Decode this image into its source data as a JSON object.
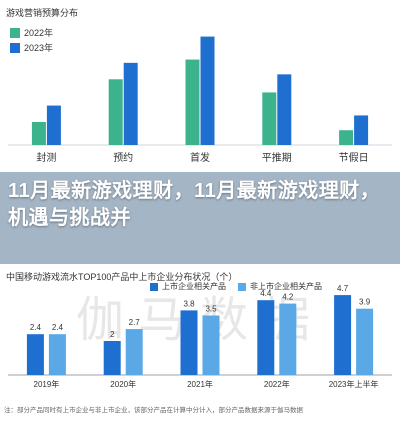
{
  "colors": {
    "series_2022": "#3cb38c",
    "series_2023": "#1e6fd0",
    "series_2022_icons": "#3cb38c",
    "bottom_listed": "#1e6fd0",
    "bottom_nonlisted": "#5aa9e6",
    "band": "#4f7190"
  },
  "headline": "11月最新游戏理财，11月最新游戏理财，机遇与挑战并",
  "watermark": "伽马数据",
  "footnote": "注：部分产品同时有上市企业与非上市企业，该部分产品在计算中分计入，部分产品数据来源于伽马数据",
  "chart_data": [
    {
      "type": "bar",
      "title": "游戏营销预算分布",
      "categories": [
        "封测",
        "预约",
        "首发",
        "平推期",
        "节假日"
      ],
      "series": [
        {
          "name": "2022年",
          "values": [
            1.4,
            4.0,
            5.2,
            3.2,
            0.9
          ]
        },
        {
          "name": "2023年",
          "values": [
            2.4,
            5.0,
            6.6,
            4.3,
            1.8
          ]
        }
      ],
      "xlabel": "",
      "ylabel": "",
      "ylim": [
        0,
        7
      ],
      "grid": false,
      "legend": "top-left"
    },
    {
      "type": "bar",
      "title": "中国移动游戏流水TOP100产品中上市企业分布状况（个）",
      "categories": [
        "2019年",
        "2020年",
        "2021年",
        "2022年",
        "2023年上半年"
      ],
      "series": [
        {
          "name": "上市企业相关产品",
          "values": [
            2.4,
            2.0,
            3.8,
            4.4,
            4.7
          ]
        },
        {
          "name": "非上市企业相关产品",
          "values": [
            2.4,
            2.7,
            3.5,
            4.2,
            3.9
          ]
        }
      ],
      "xlabel": "",
      "ylabel": "",
      "ylim": [
        0,
        5
      ],
      "grid": false,
      "legend": "top"
    }
  ]
}
